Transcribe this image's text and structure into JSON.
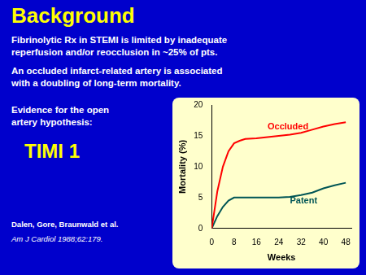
{
  "chart_data": {
    "type": "line",
    "title": "Background",
    "texts": [
      "Fibrinolytic Rx in STEMI is limited by inadequate\nreperfusion and/or reocclusion in ~25% of pts.",
      "An occluded infarct-related artery is associated\nwith a doubling of long-term mortality.",
      "Evidence for the open\nartery hypothesis:",
      "TIMI 1",
      "Dalen, Gore, Braunwald et al.",
      "Am J Cardiol 1988;62:179."
    ],
    "x": [
      0,
      1,
      2,
      4,
      6,
      8,
      10,
      12,
      16,
      20,
      24,
      28,
      32,
      36,
      40,
      44,
      48
    ],
    "series": [
      {
        "name": "Occluded",
        "color": "#FF0000",
        "values": [
          0,
          3,
          6,
          10,
          12.5,
          13.8,
          14.2,
          14.5,
          14.6,
          14.8,
          15.0,
          15.2,
          15.5,
          16.0,
          16.5,
          16.9,
          17.2
        ]
      },
      {
        "name": "Patent",
        "color": "#005555",
        "values": [
          0,
          1,
          2,
          3.5,
          4.5,
          5.0,
          5.0,
          5.0,
          5.0,
          5.0,
          5.0,
          5.1,
          5.4,
          5.8,
          6.5,
          7.0,
          7.4
        ]
      }
    ],
    "annotations": [
      {
        "text": "Occluded",
        "x": 20,
        "y": 16.0
      },
      {
        "text": "Patent",
        "x": 28,
        "y": 4.0
      }
    ],
    "xlabel": "Weeks",
    "ylabel": "Mortality (%)",
    "xlim": [
      0,
      50
    ],
    "ylim": [
      0,
      20
    ],
    "xticks": [
      0,
      8,
      16,
      24,
      32,
      40,
      48
    ],
    "yticks": [
      0,
      5,
      10,
      15,
      20
    ],
    "grid": false,
    "legend": false
  }
}
